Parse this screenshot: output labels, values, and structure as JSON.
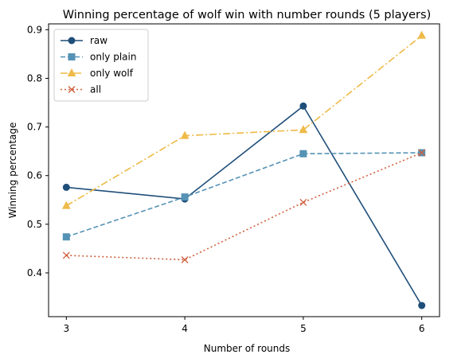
{
  "chart_data": {
    "type": "line",
    "title": "Winning percentage of wolf win with number rounds (5 players)",
    "xlabel": "Number of rounds",
    "ylabel": "Winning percentage",
    "x": [
      3,
      4,
      5,
      6
    ],
    "xticks": [
      "3",
      "4",
      "5",
      "6"
    ],
    "yticks": [
      "0.4",
      "0.5",
      "0.6",
      "0.7",
      "0.8",
      "0.9"
    ],
    "xlim": [
      2.85,
      6.15
    ],
    "ylim": [
      0.31,
      0.912
    ],
    "grid": false,
    "legend_position": "top-left",
    "series": [
      {
        "name": "raw",
        "values": [
          0.576,
          0.552,
          0.743,
          0.333
        ],
        "color": "#1f4e79",
        "linestyle": "solid",
        "marker": "circle"
      },
      {
        "name": "only plain",
        "values": [
          0.474,
          0.556,
          0.645,
          0.647
        ],
        "color": "#5592b5",
        "linestyle": "dashed",
        "marker": "square"
      },
      {
        "name": "only wolf",
        "values": [
          0.538,
          0.682,
          0.694,
          0.888
        ],
        "color": "#eeba48",
        "linestyle": "dashdot",
        "marker": "triangle"
      },
      {
        "name": "all",
        "values": [
          0.436,
          0.427,
          0.545,
          0.647
        ],
        "color": "#d1603d",
        "linestyle": "dotted",
        "marker": "x"
      }
    ]
  }
}
